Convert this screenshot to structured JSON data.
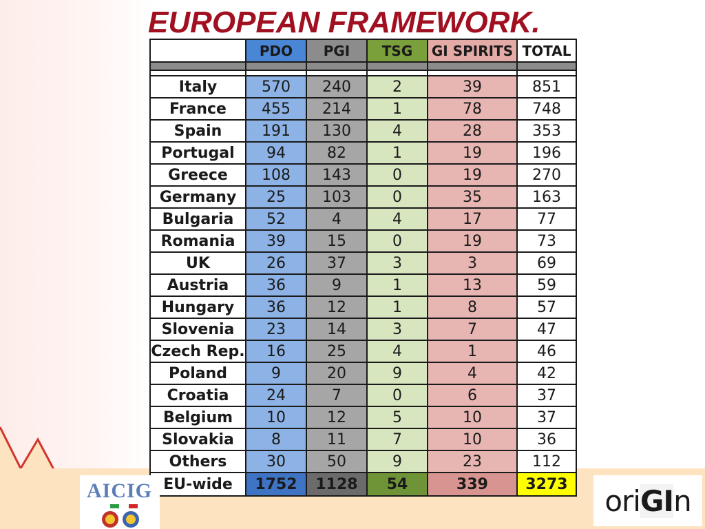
{
  "title": "EUROPEAN FRAMEWORK.",
  "headers": [
    "",
    "PDO",
    "PGI",
    "TSG",
    "GI SPIRITS",
    "TOTAL"
  ],
  "rows": [
    {
      "country": "Italy",
      "pdo": "570",
      "pgi": "240",
      "tsg": "2",
      "gi": "39",
      "total": "851"
    },
    {
      "country": "France",
      "pdo": "455",
      "pgi": "214",
      "tsg": "1",
      "gi": "78",
      "total": "748"
    },
    {
      "country": "Spain",
      "pdo": "191",
      "pgi": "130",
      "tsg": "4",
      "gi": "28",
      "total": "353"
    },
    {
      "country": "Portugal",
      "pdo": "94",
      "pgi": "82",
      "tsg": "1",
      "gi": "19",
      "total": "196"
    },
    {
      "country": "Greece",
      "pdo": "108",
      "pgi": "143",
      "tsg": "0",
      "gi": "19",
      "total": "270"
    },
    {
      "country": "Germany",
      "pdo": "25",
      "pgi": "103",
      "tsg": "0",
      "gi": "35",
      "total": "163"
    },
    {
      "country": "Bulgaria",
      "pdo": "52",
      "pgi": "4",
      "tsg": "4",
      "gi": "17",
      "total": "77"
    },
    {
      "country": "Romania",
      "pdo": "39",
      "pgi": "15",
      "tsg": "0",
      "gi": "19",
      "total": "73"
    },
    {
      "country": "UK",
      "pdo": "26",
      "pgi": "37",
      "tsg": "3",
      "gi": "3",
      "total": "69"
    },
    {
      "country": "Austria",
      "pdo": "36",
      "pgi": "9",
      "tsg": "1",
      "gi": "13",
      "total": "59"
    },
    {
      "country": "Hungary",
      "pdo": "36",
      "pgi": "12",
      "tsg": "1",
      "gi": "8",
      "total": "57"
    },
    {
      "country": "Slovenia",
      "pdo": "23",
      "pgi": "14",
      "tsg": "3",
      "gi": "7",
      "total": "47"
    },
    {
      "country": "Czech Rep.",
      "pdo": "16",
      "pgi": "25",
      "tsg": "4",
      "gi": "1",
      "total": "46"
    },
    {
      "country": "Poland",
      "pdo": "9",
      "pgi": "20",
      "tsg": "9",
      "gi": "4",
      "total": "42"
    },
    {
      "country": "Croatia",
      "pdo": "24",
      "pgi": "7",
      "tsg": "0",
      "gi": "6",
      "total": "37"
    },
    {
      "country": "Belgium",
      "pdo": "10",
      "pgi": "12",
      "tsg": "5",
      "gi": "10",
      "total": "37"
    },
    {
      "country": "Slovakia",
      "pdo": "8",
      "pgi": "11",
      "tsg": "7",
      "gi": "10",
      "total": "36"
    },
    {
      "country": "Others",
      "pdo": "30",
      "pgi": "50",
      "tsg": "9",
      "gi": "23",
      "total": "112"
    }
  ],
  "total_row": {
    "country": "EU-wide",
    "pdo": "1752",
    "pgi": "1128",
    "tsg": "54",
    "gi": "339",
    "total": "3273"
  },
  "logos": {
    "left": "AICIG",
    "right_pre": "ori",
    "right_mid": "GI",
    "right_post": "n"
  },
  "colors": {
    "title": "#a01020",
    "pdo": "#4a86d6",
    "pgi": "#8c8c8c",
    "tsg": "#7aa03c",
    "gi_spirits": "#e4aaa6",
    "total_highlight": "#ffff00"
  }
}
